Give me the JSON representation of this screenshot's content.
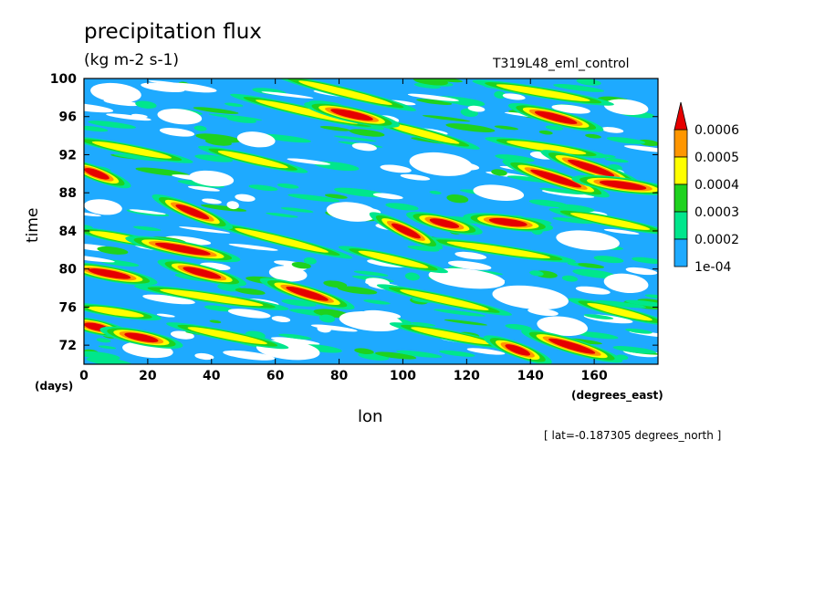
{
  "chart_data": {
    "type": "heatmap",
    "title": "precipitation flux",
    "subtitle": "(kg m-2 s-1)",
    "run_label": "T319L48_eml_control",
    "footnote": "[ lat=-0.187305 degrees_north ]",
    "xlabel": "lon",
    "ylabel": "time",
    "x_unit": "(degrees_east)",
    "y_unit": "(days)",
    "xlim": [
      0,
      180
    ],
    "ylim": [
      70,
      100
    ],
    "x_ticks": [
      "0",
      "20",
      "40",
      "60",
      "80",
      "100",
      "120",
      "140",
      "160"
    ],
    "y_ticks": [
      "72",
      "76",
      "80",
      "84",
      "88",
      "92",
      "96",
      "100"
    ],
    "grid": false,
    "legend_position": "right",
    "levels": [
      "1e-04",
      "0.0002",
      "0.0003",
      "0.0004",
      "0.0005",
      "0.0006"
    ],
    "level_colors": [
      "#ffffff",
      "#1eaaff",
      "#00e68c",
      "#1ed21e",
      "#ffff00",
      "#ff9600",
      "#e60000"
    ],
    "bands": [
      {
        "lon_start": 0,
        "time_start": 90.5,
        "lon_end": 8,
        "time_end": 89.5,
        "level": 6
      },
      {
        "lon_start": 28,
        "time_start": 86.8,
        "lon_end": 40,
        "time_end": 85.2,
        "level": 6
      },
      {
        "lon_start": 20,
        "time_start": 82.8,
        "lon_end": 42,
        "time_end": 81.4,
        "level": 6
      },
      {
        "lon_start": 0,
        "time_start": 80.0,
        "lon_end": 16,
        "time_end": 79.0,
        "level": 6
      },
      {
        "lon_start": 30,
        "time_start": 80.2,
        "lon_end": 44,
        "time_end": 79.0,
        "level": 6
      },
      {
        "lon_start": 62,
        "time_start": 78.2,
        "lon_end": 78,
        "time_end": 76.6,
        "level": 6
      },
      {
        "lon_start": 76,
        "time_start": 96.8,
        "lon_end": 92,
        "time_end": 95.6,
        "level": 6
      },
      {
        "lon_start": 96,
        "time_start": 84.8,
        "lon_end": 106,
        "time_end": 83.2,
        "level": 6
      },
      {
        "lon_start": 108,
        "time_start": 85.2,
        "lon_end": 118,
        "time_end": 84.4,
        "level": 6
      },
      {
        "lon_start": 126,
        "time_start": 85.2,
        "lon_end": 140,
        "time_end": 84.6,
        "level": 6
      },
      {
        "lon_start": 140,
        "time_start": 96.6,
        "lon_end": 156,
        "time_end": 95.2,
        "level": 6
      },
      {
        "lon_start": 138,
        "time_start": 90.6,
        "lon_end": 158,
        "time_end": 88.4,
        "level": 6
      },
      {
        "lon_start": 150,
        "time_start": 91.6,
        "lon_end": 168,
        "time_end": 89.6,
        "level": 6
      },
      {
        "lon_start": 160,
        "time_start": 89.2,
        "lon_end": 178,
        "time_end": 88.4,
        "level": 6
      },
      {
        "lon_start": 0,
        "time_start": 74.2,
        "lon_end": 8,
        "time_end": 73.6,
        "level": 6
      },
      {
        "lon_start": 12,
        "time_start": 73.2,
        "lon_end": 24,
        "time_end": 72.4,
        "level": 6
      },
      {
        "lon_start": 144,
        "time_start": 72.8,
        "lon_end": 162,
        "time_end": 71.0,
        "level": 6
      },
      {
        "lon_start": 132,
        "time_start": 72.0,
        "lon_end": 140,
        "time_end": 71.0,
        "level": 6
      },
      {
        "lon_start": 0,
        "time_start": 93.5,
        "lon_end": 30,
        "time_end": 91.5,
        "level": 4
      },
      {
        "lon_start": 40,
        "time_start": 92.5,
        "lon_end": 66,
        "time_end": 90.5,
        "level": 4
      },
      {
        "lon_start": 50,
        "time_start": 98.0,
        "lon_end": 90,
        "time_end": 95.0,
        "level": 4
      },
      {
        "lon_start": 64,
        "time_start": 100.0,
        "lon_end": 100,
        "time_end": 97.0,
        "level": 4
      },
      {
        "lon_start": 92,
        "time_start": 95.5,
        "lon_end": 120,
        "time_end": 93.0,
        "level": 4
      },
      {
        "lon_start": 126,
        "time_start": 99.5,
        "lon_end": 162,
        "time_end": 97.5,
        "level": 4
      },
      {
        "lon_start": 0,
        "time_start": 84.0,
        "lon_end": 24,
        "time_end": 82.5,
        "level": 4
      },
      {
        "lon_start": 44,
        "time_start": 84.5,
        "lon_end": 80,
        "time_end": 81.5,
        "level": 4
      },
      {
        "lon_start": 84,
        "time_start": 82.0,
        "lon_end": 110,
        "time_end": 80.0,
        "level": 4
      },
      {
        "lon_start": 110,
        "time_start": 83.0,
        "lon_end": 150,
        "time_end": 81.0,
        "level": 4
      },
      {
        "lon_start": 150,
        "time_start": 86.0,
        "lon_end": 180,
        "time_end": 84.0,
        "level": 4
      },
      {
        "lon_start": 20,
        "time_start": 78.0,
        "lon_end": 60,
        "time_end": 76.0,
        "level": 4
      },
      {
        "lon_start": 96,
        "time_start": 78.0,
        "lon_end": 130,
        "time_end": 75.5,
        "level": 4
      },
      {
        "lon_start": 0,
        "time_start": 76.0,
        "lon_end": 20,
        "time_end": 75.0,
        "level": 4
      },
      {
        "lon_start": 30,
        "time_start": 74.0,
        "lon_end": 60,
        "time_end": 72.0,
        "level": 4
      },
      {
        "lon_start": 100,
        "time_start": 74.0,
        "lon_end": 130,
        "time_end": 72.0,
        "level": 4
      },
      {
        "lon_start": 156,
        "time_start": 76.5,
        "lon_end": 180,
        "time_end": 74.5,
        "level": 4
      },
      {
        "lon_start": 130,
        "time_start": 93.5,
        "lon_end": 160,
        "time_end": 92.0,
        "level": 4
      }
    ],
    "dry_areas": [
      {
        "lon": 10,
        "time": 98.5,
        "lon_extent": 8,
        "time_extent": 1.0
      },
      {
        "lon": 30,
        "time": 96.0,
        "lon_extent": 7,
        "time_extent": 0.8
      },
      {
        "lon": 54,
        "time": 93.6,
        "lon_extent": 6,
        "time_extent": 0.8
      },
      {
        "lon": 112,
        "time": 91.0,
        "lon_extent": 10,
        "time_extent": 1.2
      },
      {
        "lon": 130,
        "time": 88.0,
        "lon_extent": 8,
        "time_extent": 0.8
      },
      {
        "lon": 170,
        "time": 97.0,
        "lon_extent": 7,
        "time_extent": 0.8
      },
      {
        "lon": 158,
        "time": 83.0,
        "lon_extent": 10,
        "time_extent": 1.0
      },
      {
        "lon": 120,
        "time": 79.0,
        "lon_extent": 12,
        "time_extent": 1.0
      },
      {
        "lon": 140,
        "time": 77.0,
        "lon_extent": 12,
        "time_extent": 1.2
      },
      {
        "lon": 170,
        "time": 78.5,
        "lon_extent": 7,
        "time_extent": 1.0
      },
      {
        "lon": 90,
        "time": 74.5,
        "lon_extent": 10,
        "time_extent": 1.0
      },
      {
        "lon": 64,
        "time": 71.5,
        "lon_extent": 10,
        "time_extent": 1.0
      },
      {
        "lon": 20,
        "time": 71.5,
        "lon_extent": 8,
        "time_extent": 0.8
      },
      {
        "lon": 40,
        "time": 89.5,
        "lon_extent": 7,
        "time_extent": 0.8
      },
      {
        "lon": 84,
        "time": 86.0,
        "lon_extent": 8,
        "time_extent": 1.0
      },
      {
        "lon": 64,
        "time": 79.5,
        "lon_extent": 6,
        "time_extent": 0.8
      },
      {
        "lon": 150,
        "time": 74.0,
        "lon_extent": 8,
        "time_extent": 1.0
      },
      {
        "lon": 6,
        "time": 86.5,
        "lon_extent": 6,
        "time_extent": 0.8
      }
    ]
  }
}
